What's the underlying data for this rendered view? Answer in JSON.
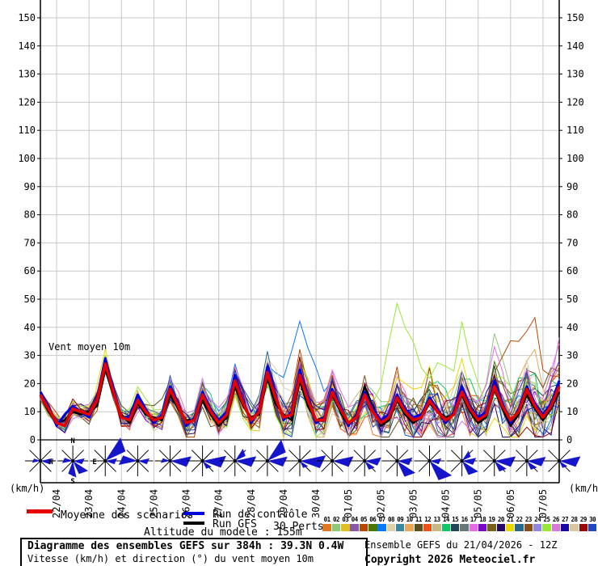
{
  "title_block": {
    "line1": "Diagramme des ensembles GEFS sur 384h : 39.3N 0.4W",
    "line2": "Vitesse (km/h) et direction (°) du vent moyen 10m"
  },
  "right_block": {
    "run_info": "Ensemble GEFS du 21/04/2026 - 12Z",
    "copyright": "Copyright 2026 Meteociel.fr"
  },
  "altitude_note": "Altitude du modele : 155m",
  "legend": {
    "mean_label": "Moyenne des scénarios",
    "mean_color": "#e60000",
    "control_label": "Run de contrôle",
    "control_color": "#0000dd",
    "gfs_label": "Run GFS",
    "gfs_color": "#000000",
    "perts_label": "30 Perts."
  },
  "axis": {
    "unit_left": "(km/h)",
    "unit_right": "(km/h)",
    "y_min": 0,
    "y_max": 150,
    "y_step": 10,
    "grid_color": "#c8c8c8",
    "annotation": "Vent moyen 10m"
  },
  "chart_data": {
    "type": "line",
    "title": "Vent moyen 10m",
    "ylabel": "(km/h)",
    "ylim": [
      0,
      156
    ],
    "run_start": "21/04/2026 12Z",
    "hours_total": 384,
    "hours_step": 6,
    "x_dates": [
      "22/04",
      "23/04",
      "24/04",
      "25/04",
      "26/04",
      "27/04",
      "28/04",
      "29/04",
      "30/04",
      "01/05",
      "02/05",
      "03/05",
      "04/05",
      "05/05",
      "06/05",
      "07/05"
    ],
    "series": [
      {
        "name": "Moyenne des scénarios",
        "color": "#e60000",
        "width": 3.6,
        "values": [
          16,
          11,
          6,
          5,
          11,
          10,
          9,
          14,
          27,
          17,
          8,
          7,
          14,
          10,
          7,
          8,
          18,
          12,
          6,
          7,
          16,
          10,
          6,
          9,
          21,
          13,
          7,
          10,
          24,
          15,
          8,
          9,
          23,
          14,
          7,
          7,
          17,
          11,
          6,
          8,
          16,
          10,
          6,
          8,
          15,
          10,
          7,
          8,
          14,
          10,
          7,
          9,
          17,
          11,
          7,
          9,
          19,
          12,
          7,
          10,
          18,
          12,
          8,
          12,
          19
        ]
      },
      {
        "name": "Run de contrôle",
        "color": "#0000dd",
        "width": 3,
        "values": [
          17,
          12,
          5,
          9,
          12,
          10,
          8,
          15,
          29,
          18,
          8,
          8,
          16,
          11,
          6,
          9,
          19,
          13,
          5,
          8,
          17,
          11,
          7,
          10,
          23,
          14,
          6,
          11,
          26,
          16,
          7,
          10,
          25,
          15,
          6,
          8,
          18,
          12,
          5,
          9,
          17,
          11,
          7,
          9,
          16,
          11,
          8,
          9,
          15,
          11,
          6,
          10,
          19,
          12,
          8,
          10,
          21,
          13,
          6,
          11,
          19,
          13,
          9,
          13,
          21
        ]
      },
      {
        "name": "Run GFS",
        "color": "#000000",
        "width": 2.6,
        "values": [
          16,
          10,
          6,
          7,
          10,
          9,
          10,
          12,
          25,
          16,
          9,
          6,
          13,
          9,
          8,
          7,
          16,
          11,
          7,
          7,
          14,
          9,
          5,
          8,
          19,
          12,
          8,
          9,
          22,
          13,
          9,
          7,
          21,
          12,
          7,
          8,
          16,
          10,
          5,
          9,
          19,
          12,
          5,
          7,
          14,
          9,
          6,
          8,
          13,
          10,
          8,
          9,
          16,
          10,
          6,
          8,
          18,
          11,
          5,
          9,
          16,
          11,
          7,
          11,
          17
        ]
      }
    ],
    "daily_max": [
      20,
      22,
      35,
      22,
      26,
      24,
      30,
      33,
      42,
      35,
      37,
      44,
      33,
      42,
      35,
      48,
      40
    ],
    "daily_min": [
      13,
      3,
      4,
      3,
      3,
      2,
      3,
      3,
      3,
      2,
      2,
      2,
      3,
      2,
      3,
      3,
      4
    ],
    "members": [
      {
        "id": "01",
        "color": "#e07820",
        "seed": 7,
        "scale": 1.0,
        "boosts": []
      },
      {
        "id": "02",
        "color": "#90c878",
        "seed": 23,
        "scale": 0.9,
        "boosts": [
          {
            "at": 57,
            "w": 4,
            "h": 17
          }
        ]
      },
      {
        "id": "03",
        "color": "#e0c020",
        "seed": 41,
        "scale": 1.1,
        "boosts": []
      },
      {
        "id": "04",
        "color": "#8858a8",
        "seed": 59,
        "scale": 0.8,
        "boosts": []
      },
      {
        "id": "05",
        "color": "#b84800",
        "seed": 73,
        "scale": 1.2,
        "boosts": [
          {
            "at": 60,
            "w": 5,
            "h": 30
          }
        ]
      },
      {
        "id": "06",
        "color": "#487800",
        "seed": 97,
        "scale": 1.0,
        "boosts": []
      },
      {
        "id": "07",
        "color": "#0878f8",
        "seed": 113,
        "scale": 0.9,
        "boosts": [
          {
            "at": 32,
            "w": 4,
            "h": 20
          },
          {
            "at": 35,
            "w": 3,
            "h": 12
          }
        ]
      },
      {
        "id": "08",
        "color": "#e0d0a8",
        "seed": 131,
        "scale": 1.1,
        "boosts": [
          {
            "at": 28,
            "w": 4,
            "h": 10
          }
        ]
      },
      {
        "id": "09",
        "color": "#3888a0",
        "seed": 149,
        "scale": 1.0,
        "boosts": []
      },
      {
        "id": "10",
        "color": "#e8a858",
        "seed": 167,
        "scale": 0.85,
        "boosts": [
          {
            "at": 61,
            "w": 3,
            "h": 16
          }
        ]
      },
      {
        "id": "11",
        "color": "#605020",
        "seed": 181,
        "scale": 1.15,
        "boosts": []
      },
      {
        "id": "12",
        "color": "#f05018",
        "seed": 199,
        "scale": 0.9,
        "boosts": []
      },
      {
        "id": "13",
        "color": "#c8b888",
        "seed": 227,
        "scale": 1.0,
        "boosts": []
      },
      {
        "id": "14",
        "color": "#10c868",
        "seed": 241,
        "scale": 1.1,
        "boosts": []
      },
      {
        "id": "15",
        "color": "#204858",
        "seed": 263,
        "scale": 0.8,
        "boosts": []
      },
      {
        "id": "16",
        "color": "#687878",
        "seed": 281,
        "scale": 0.95,
        "boosts": []
      },
      {
        "id": "17",
        "color": "#e868e8",
        "seed": 307,
        "scale": 1.05,
        "boosts": [
          {
            "at": 64,
            "w": 2,
            "h": 21
          }
        ]
      },
      {
        "id": "18",
        "color": "#7808c8",
        "seed": 331,
        "scale": 1.0,
        "boosts": []
      },
      {
        "id": "19",
        "color": "#786018",
        "seed": 353,
        "scale": 0.9,
        "boosts": []
      },
      {
        "id": "20",
        "color": "#280868",
        "seed": 379,
        "scale": 1.1,
        "boosts": []
      },
      {
        "id": "21",
        "color": "#e8d800",
        "seed": 401,
        "scale": 1.0,
        "boosts": [
          {
            "at": 8,
            "w": 2,
            "h": 7
          }
        ]
      },
      {
        "id": "22",
        "color": "#286888",
        "seed": 421,
        "scale": 0.95,
        "boosts": []
      },
      {
        "id": "23",
        "color": "#885018",
        "seed": 443,
        "scale": 1.15,
        "boosts": [
          {
            "at": 48,
            "w": 3,
            "h": 12
          }
        ]
      },
      {
        "id": "24",
        "color": "#9088e0",
        "seed": 467,
        "scale": 0.85,
        "boosts": []
      },
      {
        "id": "25",
        "color": "#98e838",
        "seed": 491,
        "scale": 1.0,
        "boosts": [
          {
            "at": 44,
            "w": 4,
            "h": 27
          },
          {
            "at": 52,
            "w": 4,
            "h": 22
          }
        ]
      },
      {
        "id": "26",
        "color": "#d878d8",
        "seed": 509,
        "scale": 1.05,
        "boosts": []
      },
      {
        "id": "27",
        "color": "#1808a0",
        "seed": 523,
        "scale": 0.9,
        "boosts": []
      },
      {
        "id": "28",
        "color": "#d8c8a0",
        "seed": 547,
        "scale": 1.0,
        "boosts": []
      },
      {
        "id": "29",
        "color": "#980808",
        "seed": 571,
        "scale": 1.1,
        "boosts": []
      },
      {
        "id": "30",
        "color": "#2048c0",
        "seed": 593,
        "scale": 0.95,
        "boosts": []
      }
    ],
    "wind_roses": {
      "color": "#1515cc",
      "compass_labels": [
        "N",
        "E",
        "S",
        "W"
      ],
      "roses": [
        {
          "wedges": [
            {
              "dir": "E",
              "size": 0.5
            },
            {
              "dir": "W",
              "size": 0.35
            }
          ]
        },
        {
          "wedges": [
            {
              "dir": "S",
              "size": 0.7
            },
            {
              "dir": "SE",
              "size": 0.75
            },
            {
              "dir": "E",
              "size": 0.5
            },
            {
              "dir": "W",
              "size": 0.45
            }
          ],
          "labeled": true
        },
        {
          "wedges": [
            {
              "dir": "NE",
              "size": 1.15
            },
            {
              "dir": "E",
              "size": 0.5
            }
          ]
        },
        {
          "wedges": [
            {
              "dir": "W",
              "size": 0.8
            },
            {
              "dir": "E",
              "size": 0.5
            }
          ]
        },
        {
          "wedges": [
            {
              "dir": "E",
              "size": 0.9
            },
            {
              "dir": "W",
              "size": 0.4
            }
          ]
        },
        {
          "wedges": [
            {
              "dir": "E",
              "size": 1.0
            },
            {
              "dir": "SE",
              "size": 0.45
            }
          ]
        },
        {
          "wedges": [
            {
              "dir": "E",
              "size": 0.9
            },
            {
              "dir": "NE",
              "size": 0.6
            }
          ]
        },
        {
          "wedges": [
            {
              "dir": "NE",
              "size": 1.05
            },
            {
              "dir": "E",
              "size": 0.85
            }
          ]
        },
        {
          "wedges": [
            {
              "dir": "E",
              "size": 1.1
            },
            {
              "dir": "SE",
              "size": 0.4
            }
          ]
        },
        {
          "wedges": [
            {
              "dir": "E",
              "size": 0.9
            }
          ]
        },
        {
          "wedges": [
            {
              "dir": "E",
              "size": 0.7
            },
            {
              "dir": "SE",
              "size": 0.5
            }
          ]
        },
        {
          "wedges": [
            {
              "dir": "SE",
              "size": 0.9
            },
            {
              "dir": "E",
              "size": 0.65
            }
          ]
        },
        {
          "wedges": [
            {
              "dir": "SE",
              "size": 1.1
            },
            {
              "dir": "E",
              "size": 0.5
            }
          ]
        },
        {
          "wedges": [
            {
              "dir": "SE",
              "size": 0.8
            },
            {
              "dir": "NE",
              "size": 0.5
            },
            {
              "dir": "E",
              "size": 0.6
            }
          ]
        },
        {
          "wedges": [
            {
              "dir": "E",
              "size": 0.9
            },
            {
              "dir": "SE",
              "size": 0.6
            }
          ]
        },
        {
          "wedges": [
            {
              "dir": "E",
              "size": 0.8
            },
            {
              "dir": "SE",
              "size": 0.5
            }
          ]
        },
        {
          "wedges": [
            {
              "dir": "E",
              "size": 0.9
            },
            {
              "dir": "SE",
              "size": 0.4
            }
          ]
        }
      ]
    }
  }
}
